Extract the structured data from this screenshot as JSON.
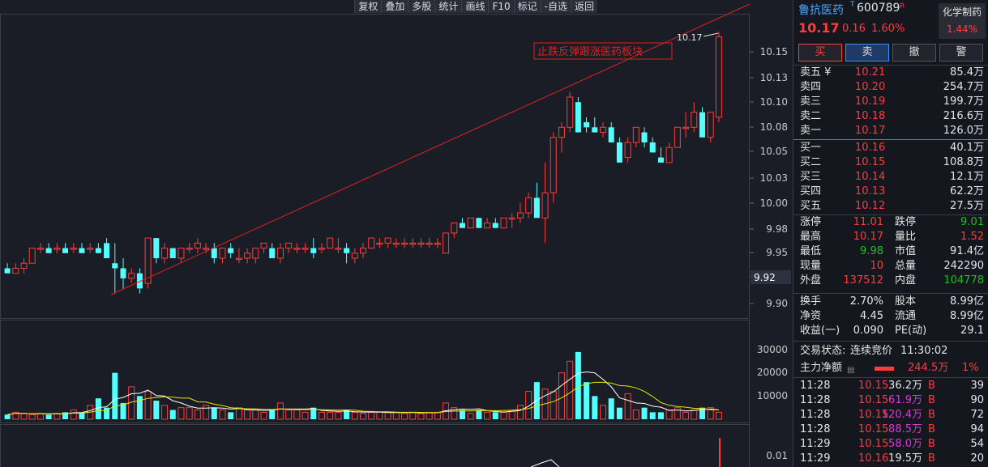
{
  "toolbar": [
    "复权",
    "叠加",
    "多股",
    "统计",
    "画线",
    "F10",
    "标记",
    "-自选",
    "返回"
  ],
  "chart": {
    "price_axis": [
      "10.15",
      "10.13",
      "10.10",
      "10.08",
      "10.05",
      "10.03",
      "10.00",
      "9.98",
      "9.95",
      "9.92",
      "9.90"
    ],
    "current_label": "9.92",
    "high_label": "10.17",
    "annotation": "止跌反弹跟涨医药板块",
    "volume_axis": [
      "30000",
      "20000",
      "10000"
    ],
    "indicator_axis": [
      "0.01"
    ],
    "up_color": "#ff3b3b",
    "down_color": "#54ffff"
  },
  "header": {
    "name": "鲁抗医药",
    "t_mark": "T",
    "code": "600789",
    "r_mark": "R",
    "price": "10.17",
    "change": "0.16",
    "change_pct": "1.60%",
    "sector_name": "化学制药",
    "sector_change": "1.44%"
  },
  "trade_buttons": [
    "买",
    "卖",
    "撤",
    "警"
  ],
  "asks": [
    {
      "label": "卖五 ¥",
      "price": "10.21",
      "vol": "85.4万"
    },
    {
      "label": "卖四",
      "price": "10.20",
      "vol": "254.7万"
    },
    {
      "label": "卖三",
      "price": "10.19",
      "vol": "199.7万"
    },
    {
      "label": "卖二",
      "price": "10.18",
      "vol": "216.6万"
    },
    {
      "label": "卖一",
      "price": "10.17",
      "vol": "126.0万"
    }
  ],
  "bids": [
    {
      "label": "买一",
      "price": "10.16",
      "vol": "40.1万"
    },
    {
      "label": "买二",
      "price": "10.15",
      "vol": "108.8万"
    },
    {
      "label": "买三",
      "price": "10.14",
      "vol": "12.1万"
    },
    {
      "label": "买四",
      "price": "10.13",
      "vol": "62.2万"
    },
    {
      "label": "买五",
      "price": "10.12",
      "vol": "27.5万"
    }
  ],
  "stats": {
    "limit_up_label": "涨停",
    "limit_up": "11.01",
    "limit_down_label": "跌停",
    "limit_down": "9.01",
    "high_label": "最高",
    "high": "10.17",
    "vol_ratio_label": "量比",
    "vol_ratio": "1.52",
    "low_label": "最低",
    "low": "9.98",
    "mktcap_label": "市值",
    "mktcap": "91.4亿",
    "cur_label": "现量",
    "cur": "10",
    "total_label": "总量",
    "total": "242290",
    "outer_label": "外盘",
    "outer": "137512",
    "inner_label": "内盘",
    "inner": "104778"
  },
  "fund": {
    "turnover_label": "换手",
    "turnover": "2.70%",
    "equity_label": "股本",
    "equity": "8.99亿",
    "nav_label": "净资",
    "nav": "4.45",
    "float_label": "流通",
    "float": "8.99亿",
    "eps_label": "收益(一)",
    "eps": "0.090",
    "pe_label": "PE(动)",
    "pe": "29.1"
  },
  "status": {
    "label": "交易状态:",
    "value": "连续竞价",
    "time": "11:30:02"
  },
  "main_flow": {
    "label": "主力净额",
    "value": "244.5万",
    "pct": "1%"
  },
  "ticks": [
    {
      "time": "11:28",
      "price": "10.15",
      "vol": "36.2万",
      "side": "B",
      "count": "39",
      "vcolor": "white"
    },
    {
      "time": "11:28",
      "price": "10.15",
      "vol": "61.9万",
      "side": "B",
      "count": "90",
      "vcolor": "purple"
    },
    {
      "time": "11:28",
      "price": "10.15",
      "vol": "120.4万",
      "side": "B",
      "count": "72",
      "vcolor": "purple"
    },
    {
      "time": "11:28",
      "price": "10.15",
      "vol": "88.5万",
      "side": "B",
      "count": "94",
      "vcolor": "purple"
    },
    {
      "time": "11:29",
      "price": "10.15",
      "vol": "58.0万",
      "side": "B",
      "count": "54",
      "vcolor": "purple"
    },
    {
      "time": "11:29",
      "price": "10.16",
      "vol": "19.5万",
      "side": "B",
      "count": "20",
      "vcolor": "white"
    }
  ]
}
